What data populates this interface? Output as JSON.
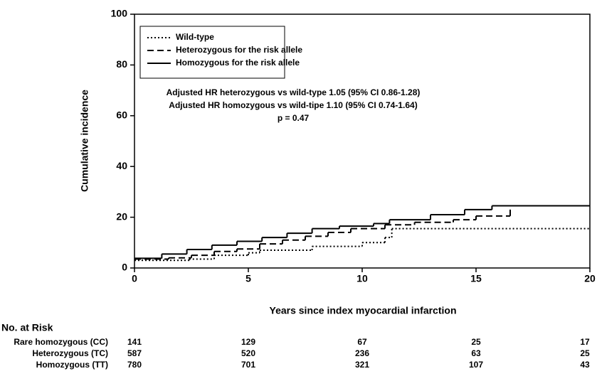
{
  "chart_data": {
    "type": "step",
    "x_label": "Years since index myocardial infarction",
    "y_label": "Cumulative incidence",
    "xlim": [
      0,
      20
    ],
    "xticks": [
      0,
      5,
      10,
      15,
      20
    ],
    "ylim": [
      0,
      100
    ],
    "yticks": [
      0,
      20,
      40,
      60,
      80,
      100
    ],
    "legend": "top-left",
    "annotations": [
      "Adjusted HR heterozygous vs wild-type 1.05 (95% CI 0.86-1.28)",
      "Adjusted HR homozygous vs wild-tipe 1.10 (95% CI 0.74-1.64)",
      "p = 0.47"
    ],
    "series": [
      {
        "name": "Wild-type",
        "color": "#000000",
        "style": "dotted",
        "x": [
          0,
          2.4,
          3.5,
          5.0,
          5.5,
          7.8,
          10.0,
          11.0,
          11.3
        ],
        "values": [
          3,
          3.5,
          5,
          6,
          7,
          8.5,
          10,
          12,
          15.5
        ]
      },
      {
        "name": "Heterozygous for the risk allele",
        "color": "#000000",
        "style": "dashed",
        "x": [
          0,
          1.5,
          2.5,
          3.5,
          4.5,
          5.5,
          6.5,
          7.5,
          8.5,
          9.5,
          11,
          12.3,
          14,
          15,
          16.5
        ],
        "values": [
          3.5,
          4,
          5,
          6.5,
          7.5,
          9.5,
          11,
          12.5,
          14,
          15.5,
          17,
          18,
          19,
          20.5,
          24.5
        ]
      },
      {
        "name": "Homozygous  for the risk allele",
        "color": "#000000",
        "style": "solid",
        "x": [
          0,
          1.2,
          2.3,
          3.4,
          4.5,
          5.6,
          6.7,
          7.8,
          9,
          10.5,
          11.2,
          13,
          14.5,
          15.7
        ],
        "values": [
          3.8,
          5.5,
          7.3,
          9,
          10.5,
          12,
          13.7,
          15.5,
          16.5,
          17.5,
          19,
          21,
          23,
          24.5
        ]
      }
    ],
    "risk_table": {
      "title": "No. at Risk",
      "rows": [
        {
          "label": "Rare homozygous (CC)",
          "values": [
            141,
            129,
            67,
            25,
            17
          ]
        },
        {
          "label": "Heterozygous (TC)",
          "values": [
            587,
            520,
            236,
            63,
            25
          ]
        },
        {
          "label": "Homozygous (TT)",
          "values": [
            780,
            701,
            321,
            107,
            43
          ]
        }
      ]
    }
  }
}
